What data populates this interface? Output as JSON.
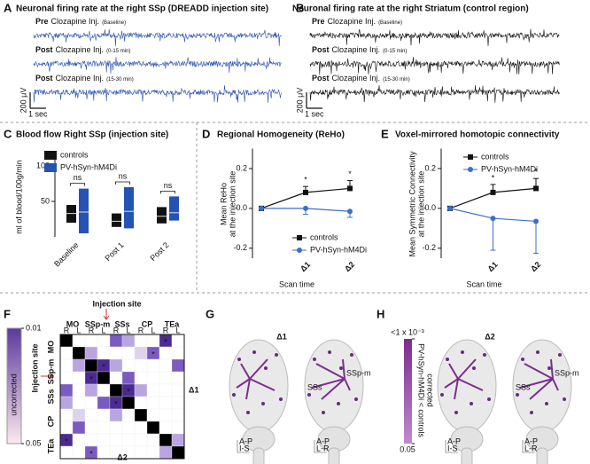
{
  "figure": {
    "panel_letters": [
      "A",
      "B",
      "C",
      "D",
      "E",
      "F",
      "G",
      "H"
    ]
  },
  "panel_a": {
    "title": "Neuronal firing rate at the right SSp (DREADD injection site)",
    "color": "#2a52b0",
    "traces": [
      {
        "label_bold": "Pre",
        "label": "Clozapine Inj.",
        "label_note": "(Baseline)"
      },
      {
        "label_bold": "Post",
        "label": "Clozapine Inj.",
        "label_note": "(0-15 min)"
      },
      {
        "label_bold": "Post",
        "label": "Clozapine Inj.",
        "label_note": "(15-30 min)"
      }
    ],
    "scale_y": "200 μV",
    "scale_x": "1 sec"
  },
  "panel_b": {
    "title": "Neuronal firing rate at the right Striatum (control region)",
    "color": "#111111",
    "traces": [
      {
        "label_bold": "Pre",
        "label": "Clozapine Inj.",
        "label_note": "(Baseline)"
      },
      {
        "label_bold": "Post",
        "label": "Clozapine Inj.",
        "label_note": "(0-15 min)"
      },
      {
        "label_bold": "Post",
        "label": "Clozapine Inj.",
        "label_note": "(15-30 min)"
      }
    ],
    "scale_y": "200 μV",
    "scale_x": "1 sec"
  },
  "chart_data": [
    {
      "type": "box",
      "title": "Blood flow Right SSp (injection site)",
      "y_label": "ml of blood/100g/min",
      "categories": [
        "Baseline",
        "Post 1",
        "Post 2"
      ],
      "series": [
        {
          "name": "controls",
          "color": "#111111",
          "q1": [
            20,
            14,
            19
          ],
          "median": [
            33,
            22,
            29
          ],
          "q3": [
            45,
            33,
            42
          ]
        },
        {
          "name": "PV-hSyn-hM4Di",
          "color": "#2553b5",
          "q1": [
            5,
            12,
            23
          ],
          "median": [
            35,
            36,
            34
          ],
          "q3": [
            68,
            70,
            57
          ]
        }
      ],
      "annotations": [
        "ns",
        "ns",
        "ns"
      ],
      "ylim": [
        0,
        110
      ],
      "yticks": [
        50,
        100
      ],
      "legend": "upper left"
    },
    {
      "type": "line",
      "title": "Regional Homogeneity (ReHo)",
      "y_label": [
        "Mean ReHo",
        "at the injection site"
      ],
      "x_label": "Scan time",
      "categories": [
        null,
        "Δ1",
        "Δ2"
      ],
      "series": [
        {
          "name": "controls",
          "color": "#111111",
          "marker": "square",
          "error_direction": "up",
          "values": [
            0,
            0.08,
            0.1
          ],
          "errors": [
            0,
            0.03,
            0.04
          ]
        },
        {
          "name": "PV-hSyn-hM4Di",
          "color": "#3b6fc9",
          "marker": "circle",
          "error_direction": "down",
          "values": [
            0,
            0,
            -0.015
          ],
          "errors": [
            0,
            0.03,
            0.03
          ]
        }
      ],
      "significance": [
        {
          "index": 1,
          "text": "*"
        },
        {
          "index": 2,
          "text": "*"
        }
      ],
      "ylim": [
        -0.25,
        0.3
      ],
      "yticks": [
        -0.2,
        {
          "value": 0,
          "label": "0.0"
        },
        0.2
      ],
      "legend": "lower right"
    },
    {
      "type": "line",
      "title": "Voxel-mirrored homotopic connectivity",
      "y_label": [
        "Mean Symmetric Connectivity",
        "at the injection site"
      ],
      "x_label": "Scan time",
      "categories": [
        null,
        "Δ1",
        "Δ2"
      ],
      "series": [
        {
          "name": "controls",
          "color": "#111111",
          "marker": "square",
          "error_direction": "up",
          "values": [
            0,
            0.08,
            0.1
          ],
          "errors": [
            0,
            0.04,
            0.05
          ]
        },
        {
          "name": "PV-hSyn-hM4Di",
          "color": "#3b6fc9",
          "marker": "circle",
          "error_direction": "down",
          "values": [
            0,
            -0.05,
            -0.065
          ],
          "errors": [
            0,
            0.16,
            0.16
          ]
        }
      ],
      "significance": [
        {
          "index": 1,
          "text": "*"
        },
        {
          "index": 2,
          "text": "*"
        }
      ],
      "ylim": [
        -0.25,
        0.3
      ],
      "yticks": [
        -0.2,
        {
          "value": 0,
          "label": "0.0"
        },
        0.2
      ],
      "legend": "upper right"
    }
  ],
  "panel_f": {
    "injection_label": "Injection site",
    "row_marker": "Injection site",
    "colorbar_label": "uncorrected",
    "colorbar_ticks": [
      0.01,
      0.05
    ],
    "regions": [
      "MO",
      "SSp-m",
      "SSs",
      "CP",
      "TEa"
    ],
    "sides": [
      "R",
      "L"
    ],
    "delta_right": "Δ1",
    "delta_bottom": "Δ2",
    "star": "*",
    "cells": [
      [
        "#000",
        "#fff",
        "#fff",
        "#fff",
        "#7a5cc0",
        "#b9a6e0",
        "#fff",
        "#fff",
        "#4b2a91",
        "#fff"
      ],
      [
        "#fff",
        "#000",
        "#b9a6e0",
        "#fff",
        "#fff",
        "#fff",
        "#ddd3f0",
        "#7a5cc0",
        "#fff",
        "#fff"
      ],
      [
        "#fff",
        "#b9a6e0",
        "#000",
        "#4b2a91",
        "#b9a6e0",
        "#fff",
        "#fff",
        "#fff",
        "#fff",
        "#7a5cc0"
      ],
      [
        "#fff",
        "#fff",
        "#4b2a91",
        "#000",
        "#fff",
        "#7a5cc0",
        "#fff",
        "#fff",
        "#fff",
        "#fff"
      ],
      [
        "#7a5cc0",
        "#fff",
        "#b9a6e0",
        "#fff",
        "#000",
        "#4b2a91",
        "#b9a6e0",
        "#fff",
        "#fff",
        "#fff"
      ],
      [
        "#b9a6e0",
        "#fff",
        "#fff",
        "#7a5cc0",
        "#4b2a91",
        "#000",
        "#fff",
        "#fff",
        "#fff",
        "#fff"
      ],
      [
        "#fff",
        "#ddd3f0",
        "#fff",
        "#fff",
        "#b9a6e0",
        "#fff",
        "#000",
        "#fff",
        "#fff",
        "#fff"
      ],
      [
        "#fff",
        "#7a5cc0",
        "#fff",
        "#fff",
        "#fff",
        "#fff",
        "#fff",
        "#000",
        "#fff",
        "#fff"
      ],
      [
        "#4b2a91",
        "#fff",
        "#fff",
        "#fff",
        "#fff",
        "#fff",
        "#fff",
        "#fff",
        "#000",
        "#b9a6e0"
      ],
      [
        "#fff",
        "#fff",
        "#7a5cc0",
        "#fff",
        "#fff",
        "#fff",
        "#fff",
        "#fff",
        "#b9a6e0",
        "#000"
      ]
    ],
    "starred": [
      [
        0,
        8
      ],
      [
        1,
        7
      ],
      [
        2,
        3
      ],
      [
        3,
        2
      ],
      [
        4,
        5
      ],
      [
        5,
        4
      ],
      [
        8,
        0
      ],
      [
        9,
        2
      ]
    ]
  },
  "panel_g": {
    "title": "Δ1",
    "region_labels": [
      "SSp-m",
      "SSs"
    ],
    "axes_left": [
      "A-P",
      "I-S"
    ],
    "axes_right": [
      "A-P",
      "L-R"
    ]
  },
  "panel_h": {
    "title": "Δ2",
    "region_labels": [
      "SSp-m",
      "SSs"
    ],
    "axes_left": [
      "A-P",
      "I-S"
    ],
    "axes_right": [
      "A-P",
      "L-R"
    ],
    "colorbar_ticks": [
      {
        "value": 0.001,
        "label": "<1 x 10⁻³"
      },
      0.05
    ],
    "colorbar_label": [
      "PV-hSyn-hM4Di < controls",
      "corrected"
    ]
  }
}
